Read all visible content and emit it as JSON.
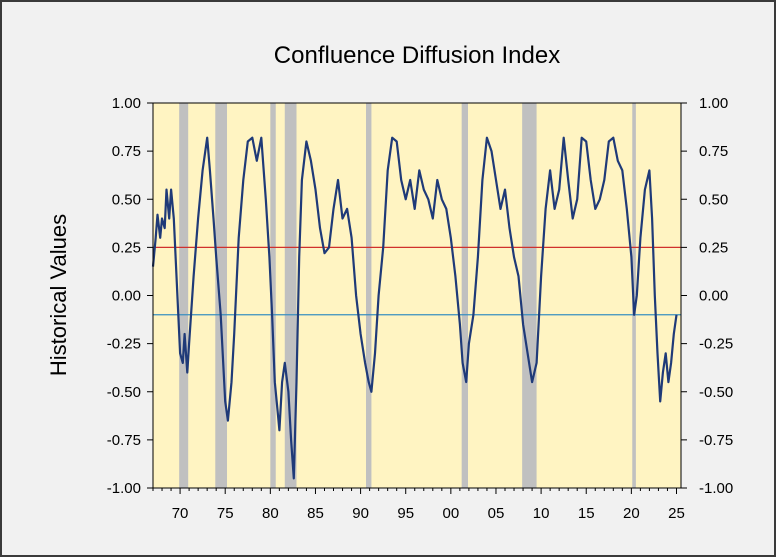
{
  "chart_data": {
    "type": "line",
    "title": "Confluence Diffusion Index",
    "ylabel": "Historical Values",
    "xlabel": "",
    "xlim": [
      1967.0,
      2025.5
    ],
    "ylim": [
      -1.0,
      1.0
    ],
    "y_ticks": [
      "1.00",
      "0.75",
      "0.50",
      "0.25",
      "0.00",
      "-0.25",
      "-0.50",
      "-0.75",
      "-1.00"
    ],
    "y_tick_values": [
      1.0,
      0.75,
      0.5,
      0.25,
      0.0,
      -0.25,
      -0.5,
      -0.75,
      -1.0
    ],
    "x_ticks": [
      "70",
      "75",
      "80",
      "85",
      "90",
      "95",
      "00",
      "05",
      "10",
      "15",
      "20",
      "25"
    ],
    "x_tick_values": [
      1970,
      1975,
      1980,
      1985,
      1990,
      1995,
      2000,
      2005,
      2010,
      2015,
      2020,
      2025
    ],
    "grid": false,
    "colors": {
      "plot_bg": "#fff4c2",
      "recession": "#c0c0c0",
      "series": "#1f3a78",
      "ref_upper": "#d0312d",
      "ref_lower": "#3a8fc0"
    },
    "recessions": [
      [
        1969.9,
        1970.9
      ],
      [
        1973.9,
        1975.2
      ],
      [
        1980.0,
        1980.6
      ],
      [
        1981.6,
        1982.9
      ],
      [
        1990.6,
        1991.2
      ],
      [
        2001.2,
        2001.9
      ],
      [
        2007.9,
        2009.5
      ],
      [
        2020.1,
        2020.5
      ]
    ],
    "reference_lines": [
      {
        "value": 0.25,
        "color": "#d0312d"
      },
      {
        "value": -0.1,
        "color": "#3a8fc0"
      }
    ],
    "series": [
      {
        "x": [
          1967.0,
          1967.3,
          1967.5,
          1967.8,
          1968.0,
          1968.3,
          1968.5,
          1968.8,
          1969.0,
          1969.3,
          1969.5,
          1969.8,
          1970.0,
          1970.3,
          1970.5,
          1970.8,
          1971.0,
          1971.5,
          1972.0,
          1972.5,
          1972.8,
          1973.0,
          1973.3,
          1973.7,
          1974.0,
          1974.5,
          1975.0,
          1975.3,
          1975.7,
          1976.0,
          1976.5,
          1977.0,
          1977.5,
          1978.0,
          1978.5,
          1979.0,
          1979.5,
          1979.9,
          1980.2,
          1980.5,
          1980.8,
          1981.0,
          1981.3,
          1981.6,
          1982.0,
          1982.3,
          1982.6,
          1982.9,
          1983.2,
          1983.5,
          1984.0,
          1984.5,
          1985.0,
          1985.5,
          1986.0,
          1986.5,
          1987.0,
          1987.5,
          1988.0,
          1988.5,
          1989.0,
          1989.5,
          1990.0,
          1990.5,
          1990.9,
          1991.2,
          1991.6,
          1992.0,
          1992.5,
          1993.0,
          1993.5,
          1994.0,
          1994.5,
          1995.0,
          1995.5,
          1996.0,
          1996.5,
          1997.0,
          1997.5,
          1998.0,
          1998.5,
          1999.0,
          1999.5,
          2000.0,
          2000.5,
          2001.0,
          2001.3,
          2001.7,
          2002.0,
          2002.5,
          2003.0,
          2003.5,
          2004.0,
          2004.5,
          2005.0,
          2005.5,
          2006.0,
          2006.5,
          2007.0,
          2007.5,
          2008.0,
          2008.5,
          2009.0,
          2009.5,
          2010.0,
          2010.5,
          2011.0,
          2011.5,
          2012.0,
          2012.5,
          2013.0,
          2013.5,
          2014.0,
          2014.5,
          2015.0,
          2015.5,
          2016.0,
          2016.5,
          2017.0,
          2017.5,
          2018.0,
          2018.5,
          2019.0,
          2019.5,
          2020.0,
          2020.3,
          2020.6,
          2021.0,
          2021.5,
          2022.0,
          2022.3,
          2022.6,
          2022.9,
          2023.2,
          2023.5,
          2023.8,
          2024.1,
          2024.4,
          2024.7,
          2025.0
        ],
        "y": [
          0.15,
          0.3,
          0.42,
          0.3,
          0.4,
          0.35,
          0.55,
          0.4,
          0.55,
          0.4,
          0.2,
          -0.1,
          -0.3,
          -0.35,
          -0.2,
          -0.4,
          -0.25,
          0.1,
          0.4,
          0.65,
          0.75,
          0.82,
          0.65,
          0.4,
          0.2,
          -0.1,
          -0.55,
          -0.65,
          -0.45,
          -0.2,
          0.3,
          0.6,
          0.8,
          0.82,
          0.7,
          0.82,
          0.5,
          0.2,
          -0.1,
          -0.45,
          -0.6,
          -0.7,
          -0.45,
          -0.35,
          -0.5,
          -0.75,
          -0.95,
          -0.45,
          0.2,
          0.6,
          0.8,
          0.7,
          0.55,
          0.35,
          0.22,
          0.25,
          0.45,
          0.6,
          0.4,
          0.45,
          0.3,
          0.0,
          -0.2,
          -0.35,
          -0.45,
          -0.5,
          -0.3,
          0.0,
          0.25,
          0.65,
          0.82,
          0.8,
          0.6,
          0.5,
          0.6,
          0.45,
          0.65,
          0.55,
          0.5,
          0.4,
          0.6,
          0.5,
          0.45,
          0.3,
          0.1,
          -0.15,
          -0.35,
          -0.45,
          -0.25,
          -0.1,
          0.2,
          0.6,
          0.82,
          0.75,
          0.6,
          0.45,
          0.55,
          0.35,
          0.2,
          0.1,
          -0.15,
          -0.3,
          -0.45,
          -0.35,
          0.1,
          0.45,
          0.65,
          0.45,
          0.55,
          0.82,
          0.6,
          0.4,
          0.5,
          0.82,
          0.8,
          0.6,
          0.45,
          0.5,
          0.6,
          0.8,
          0.82,
          0.7,
          0.65,
          0.45,
          0.2,
          -0.1,
          0.0,
          0.3,
          0.55,
          0.65,
          0.4,
          0.0,
          -0.3,
          -0.55,
          -0.4,
          -0.3,
          -0.45,
          -0.35,
          -0.2,
          -0.1
        ]
      }
    ]
  }
}
